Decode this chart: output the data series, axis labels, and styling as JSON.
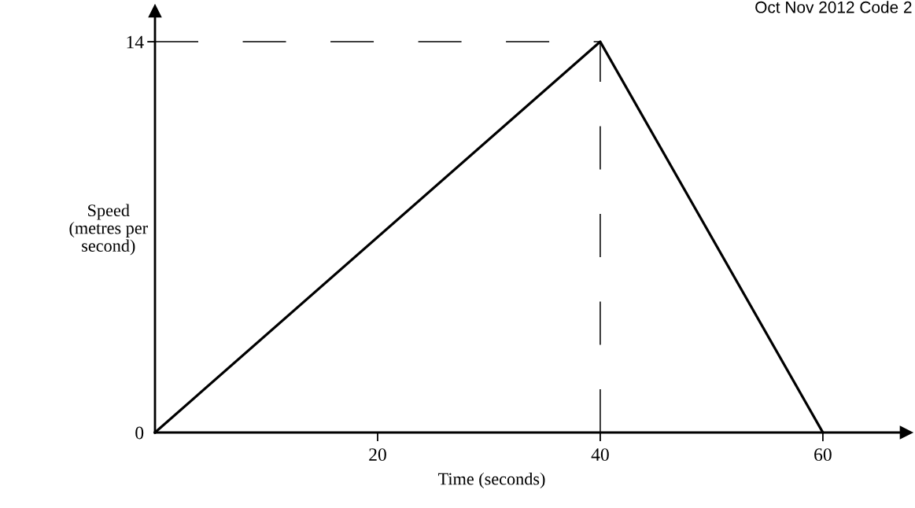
{
  "chart_data": {
    "type": "line",
    "xlabel": "Time (seconds)",
    "ylabel": "Speed\n(metres per\nsecond)",
    "annotations": [
      "Oct Nov 2012 Code 2"
    ],
    "x": [
      0,
      40,
      60
    ],
    "series": [
      {
        "color": "#000000",
        "values": [
          0,
          14,
          0
        ]
      }
    ],
    "xlim": [
      0,
      67.5
    ],
    "ylim": [
      0,
      15.1
    ],
    "xticks": [
      20,
      40,
      60
    ],
    "yticks": [
      0,
      14
    ],
    "ref_lines": [
      {
        "axis": "y",
        "value": 14,
        "color": "#000000",
        "line_style": "dashed"
      },
      {
        "axis": "x",
        "value": 40,
        "color": "#000000",
        "line_style": "dashed"
      }
    ],
    "grid": false,
    "legend": false,
    "marker": "none",
    "line_style": "solid"
  }
}
